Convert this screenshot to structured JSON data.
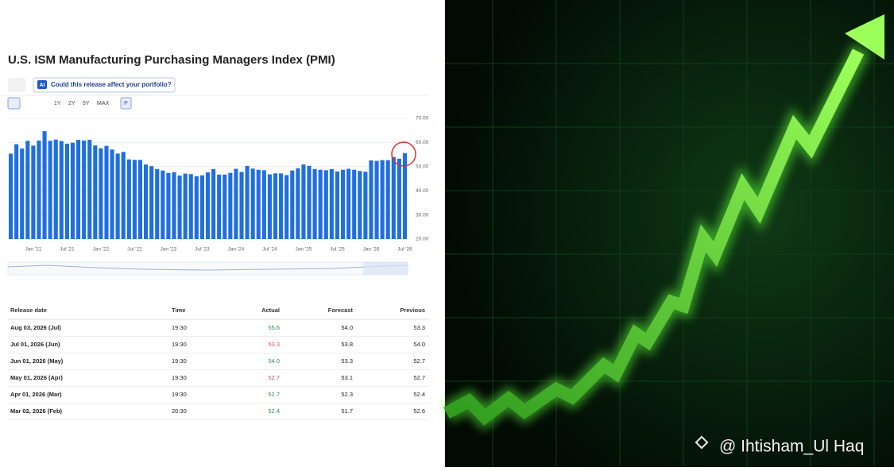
{
  "chart_data": {
    "type": "bar",
    "title": "U.S. ISM Manufacturing Purchasing Managers Index (PMI)",
    "categories": [
      null,
      null,
      null,
      null,
      "Jan '21",
      null,
      null,
      null,
      null,
      null,
      "Jul '21",
      null,
      null,
      null,
      null,
      null,
      "Jan '22",
      null,
      null,
      null,
      null,
      null,
      "Jul '22",
      null,
      null,
      null,
      null,
      null,
      "Jan '23",
      null,
      null,
      null,
      null,
      null,
      "Jul '23",
      null,
      null,
      null,
      null,
      null,
      "Jan '24",
      null,
      null,
      null,
      null,
      null,
      "Jul '24",
      null,
      null,
      null,
      null,
      null,
      "Jan '25",
      null,
      null,
      null,
      null,
      null,
      "Jul '25",
      null,
      null,
      null,
      null,
      null,
      "Jan '26",
      null,
      null,
      null,
      null,
      null,
      "Jul '26"
    ],
    "values": [
      55.4,
      59.3,
      57.5,
      60.7,
      58.7,
      60.8,
      64.7,
      60.7,
      61.2,
      60.6,
      59.5,
      59.9,
      61.1,
      60.8,
      61.1,
      58.8,
      57.6,
      58.6,
      57.1,
      55.4,
      56.1,
      53.0,
      52.8,
      52.8,
      50.9,
      50.2,
      49.0,
      48.4,
      47.4,
      47.7,
      46.3,
      47.1,
      46.9,
      46.0,
      46.4,
      47.6,
      49.0,
      46.7,
      46.7,
      47.4,
      49.1,
      47.8,
      50.3,
      49.2,
      48.7,
      48.5,
      46.8,
      47.2,
      47.2,
      46.5,
      48.4,
      49.3,
      50.9,
      50.3,
      49.0,
      48.7,
      48.5,
      49.0,
      48.0,
      48.7,
      49.1,
      48.7,
      48.2,
      47.9,
      52.6,
      52.4,
      52.7,
      52.7,
      54.0,
      53.3,
      55.6
    ],
    "color": "#1f6fe0",
    "ylim": [
      20,
      70
    ],
    "yticks": [
      {
        "value": 20,
        "label": "20.00"
      },
      {
        "value": 30,
        "label": "30.00"
      },
      {
        "value": 40,
        "label": "40.00"
      },
      {
        "value": 50,
        "label": "50.00"
      },
      {
        "value": 60,
        "label": "60.00"
      },
      {
        "value": 70,
        "label": "70.00"
      }
    ],
    "grid": true
  },
  "toolbar": {
    "ai_badge": "AI",
    "ai_prompt": "Could this release affect your portfolio?",
    "ranges": [
      "1Y",
      "2Y",
      "5Y",
      "MAX"
    ],
    "period": "P"
  },
  "table": {
    "headers": [
      "Release date",
      "Time",
      "Actual",
      "Forecast",
      "Previous"
    ],
    "rows": [
      [
        "Aug 03, 2026 (Jul)",
        "19:30",
        "55.6",
        "54.0",
        "53.3"
      ],
      [
        "Jul 01, 2026 (Jun)",
        "19:30",
        "53.3",
        "53.8",
        "54.0"
      ],
      [
        "Jun 01, 2026 (May)",
        "19:30",
        "54.0",
        "53.3",
        "52.7"
      ],
      [
        "May 01, 2026 (Apr)",
        "19:30",
        "52.7",
        "53.1",
        "52.7"
      ],
      [
        "Apr 01, 2026 (Mar)",
        "19:30",
        "52.7",
        "52.3",
        "52.4"
      ],
      [
        "Mar 02, 2026 (Feb)",
        "20:30",
        "52.4",
        "51.7",
        "52.6"
      ]
    ],
    "actual_colors": [
      "#2e8b57",
      "#d9534f",
      "#2e8b57",
      "#d9534f",
      "#2e8b57",
      "#2e8b57"
    ]
  },
  "watermark": "@ Ihtisham_Ul Haq"
}
